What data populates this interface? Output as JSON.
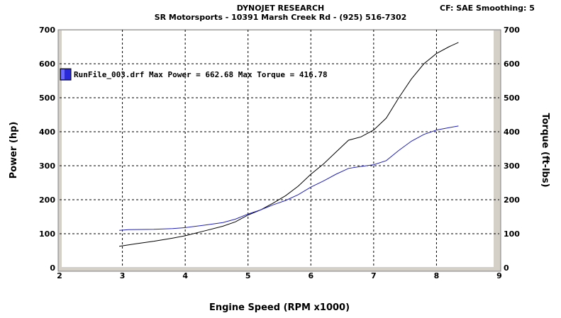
{
  "header": {
    "title": "DYNOJET RESEARCH",
    "subtitle": "SR Motorsports - 10391 Marsh Creek Rd - (925) 516-7302",
    "cf": "CF: SAE  Smoothing: 5"
  },
  "colors": {
    "power": "#000000",
    "torque": "#2020c0",
    "legend_swatch": "#2a2ad8",
    "plot_bg": "#ffffff",
    "frame": "#d4d0c8"
  },
  "chart_data": {
    "type": "line",
    "xlabel": "Engine Speed (RPM x1000)",
    "ylabel": "Power (hp)",
    "y2label": "Torque (ft-lbs)",
    "xlim": [
      2,
      9
    ],
    "ylim": [
      0,
      700
    ],
    "y2lim": [
      0,
      700
    ],
    "xticks": [
      "2",
      "3",
      "4",
      "5",
      "6",
      "7",
      "8",
      "9"
    ],
    "yticks": [
      "0",
      "100",
      "200",
      "300",
      "400",
      "500",
      "600",
      "700"
    ],
    "y2ticks": [
      "0",
      "100",
      "200",
      "300",
      "400",
      "500",
      "600",
      "700"
    ],
    "grid": true,
    "legend": {
      "position": "top-left",
      "text": "RunFile_003.drf Max Power = 662.68    Max Torque = 416.78"
    },
    "series": [
      {
        "axis": "left",
        "x": [
          2.95,
          3.2,
          3.5,
          3.8,
          4.0,
          4.3,
          4.6,
          4.8,
          5.0,
          5.2,
          5.4,
          5.6,
          5.8,
          6.0,
          6.2,
          6.4,
          6.6,
          6.8,
          7.0,
          7.2,
          7.4,
          7.6,
          7.8,
          8.0,
          8.2,
          8.35
        ],
        "values": [
          63,
          70,
          78,
          87,
          94,
          108,
          122,
          135,
          155,
          170,
          190,
          212,
          240,
          275,
          305,
          340,
          375,
          385,
          405,
          440,
          500,
          555,
          600,
          630,
          650,
          662.68
        ]
      },
      {
        "axis": "right",
        "x": [
          2.95,
          3.1,
          3.5,
          3.8,
          4.0,
          4.3,
          4.6,
          4.8,
          5.0,
          5.2,
          5.4,
          5.6,
          5.8,
          6.0,
          6.2,
          6.4,
          6.6,
          6.8,
          7.0,
          7.2,
          7.4,
          7.6,
          7.8,
          8.0,
          8.2,
          8.35
        ],
        "values": [
          110,
          112,
          113,
          115,
          118,
          125,
          133,
          143,
          158,
          170,
          185,
          198,
          215,
          237,
          255,
          275,
          292,
          298,
          303,
          315,
          345,
          372,
          392,
          405,
          412,
          416.78
        ]
      }
    ]
  }
}
